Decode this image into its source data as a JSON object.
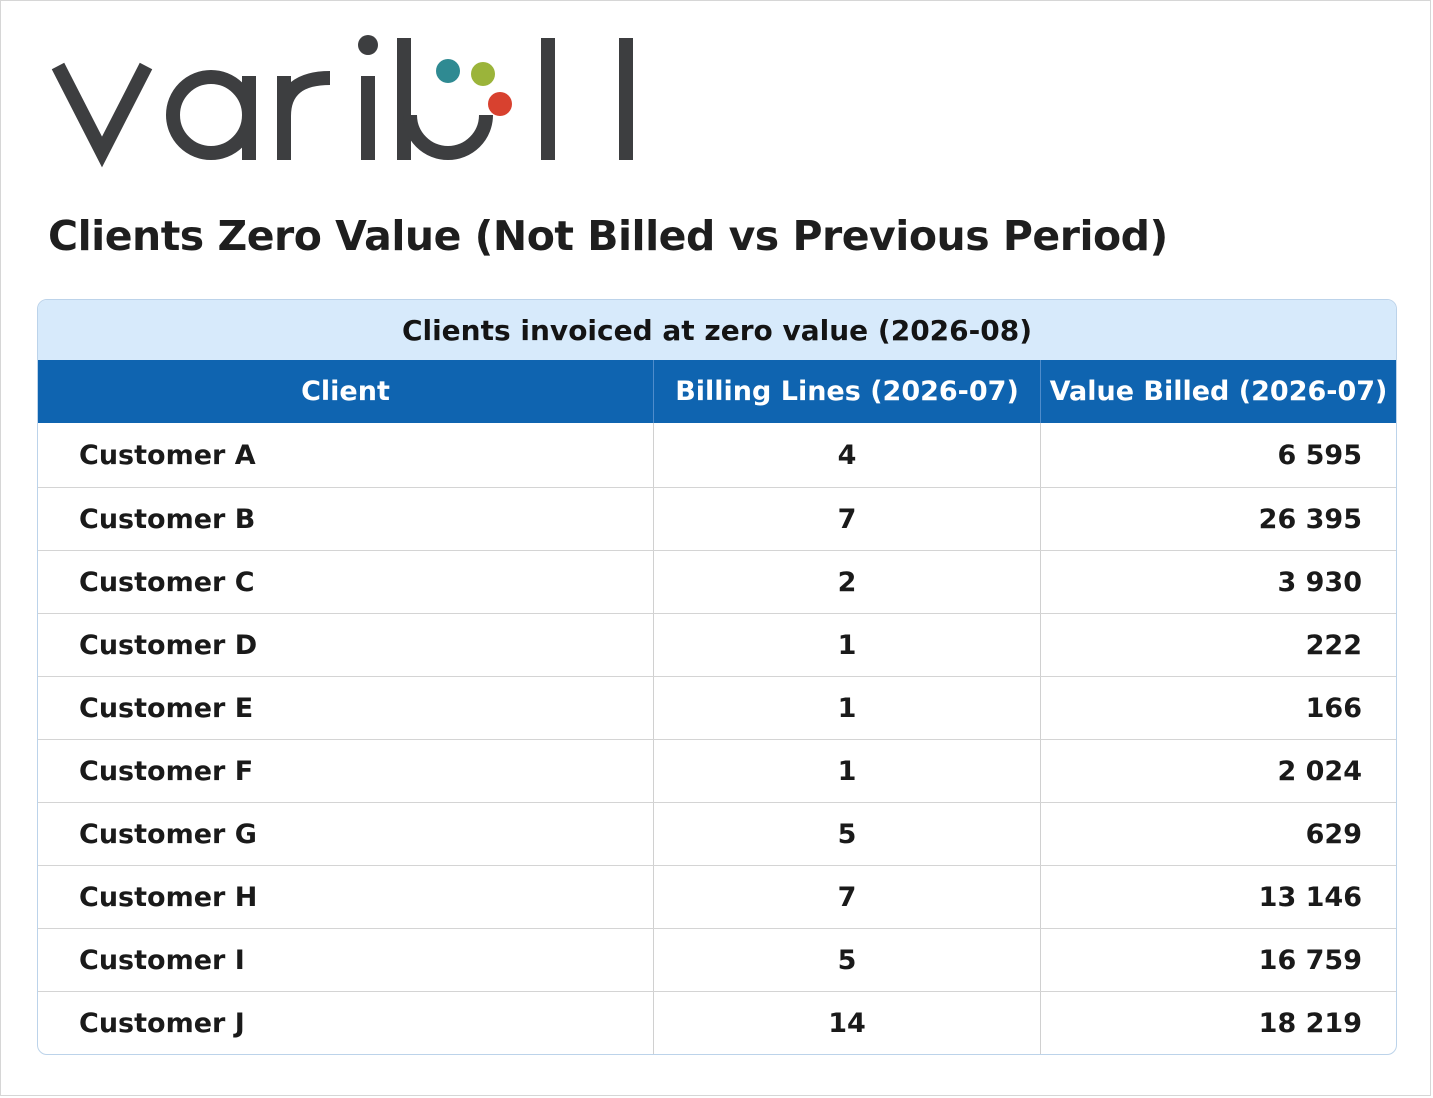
{
  "brand": {
    "logo_text": "varibill",
    "colors": {
      "wordmark": "#3d3e40",
      "dot_teal": "#2f8a92",
      "dot_green": "#9bb43a",
      "dot_red": "#d8412f"
    }
  },
  "page": {
    "title": "Clients Zero Value (Not Billed vs Previous Period)"
  },
  "table": {
    "caption": "Clients invoiced at zero value (2026-08)",
    "columns": [
      "Client",
      "Billing Lines (2026-07)",
      "Value Billed (2026-07)"
    ],
    "rows": [
      {
        "client": "Customer A",
        "billing_lines": "4",
        "value_billed": "6 595"
      },
      {
        "client": "Customer B",
        "billing_lines": "7",
        "value_billed": "26 395"
      },
      {
        "client": "Customer C",
        "billing_lines": "2",
        "value_billed": "3 930"
      },
      {
        "client": "Customer D",
        "billing_lines": "1",
        "value_billed": "222"
      },
      {
        "client": "Customer E",
        "billing_lines": "1",
        "value_billed": "166"
      },
      {
        "client": "Customer F",
        "billing_lines": "1",
        "value_billed": "2 024"
      },
      {
        "client": "Customer G",
        "billing_lines": "5",
        "value_billed": "629"
      },
      {
        "client": "Customer H",
        "billing_lines": "7",
        "value_billed": "13 146"
      },
      {
        "client": "Customer I",
        "billing_lines": "5",
        "value_billed": "16 759"
      },
      {
        "client": "Customer J",
        "billing_lines": "14",
        "value_billed": "18 219"
      }
    ],
    "colors": {
      "caption_bg": "#d7eafb",
      "header_bg": "#0f64b0",
      "header_text": "#ffffff"
    }
  }
}
